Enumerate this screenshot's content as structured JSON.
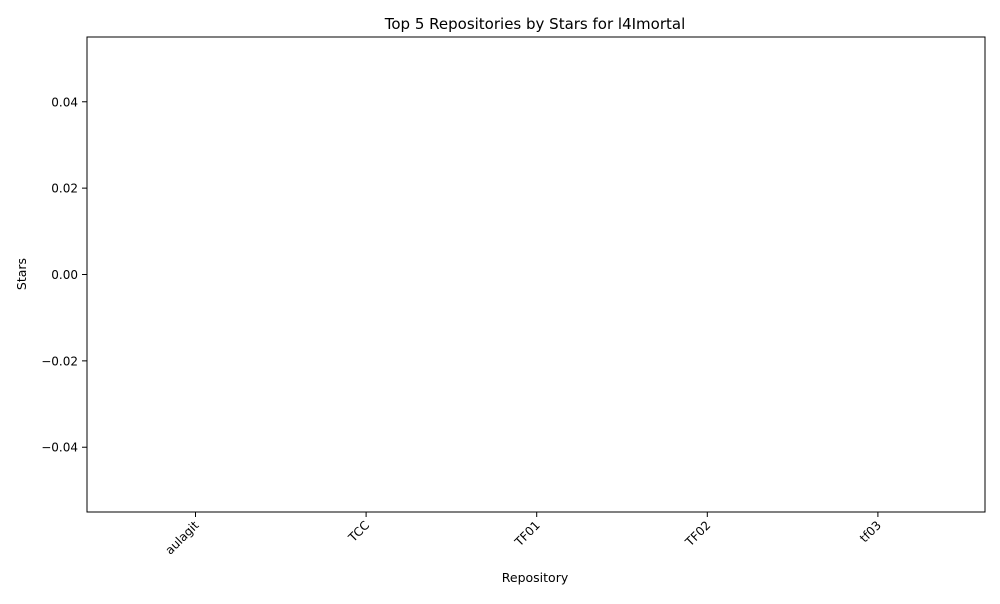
{
  "chart_data": {
    "type": "bar",
    "title": "Top 5 Repositories by Stars for l4Imortal",
    "xlabel": "Repository",
    "ylabel": "Stars",
    "categories": [
      "aulagit",
      "TCC",
      "TF01",
      "TF02",
      "tf03"
    ],
    "values": [
      0,
      0,
      0,
      0,
      0
    ],
    "ylim": [
      -0.055,
      0.055
    ],
    "yticks": [
      -0.04,
      -0.02,
      0.0,
      0.02,
      0.04
    ],
    "ytick_labels": [
      "−0.04",
      "−0.02",
      "0.00",
      "0.02",
      "0.04"
    ],
    "grid": false,
    "legend": "none",
    "colors": {
      "bar": "#1f77b4",
      "axis": "#000000",
      "background": "#ffffff"
    }
  }
}
